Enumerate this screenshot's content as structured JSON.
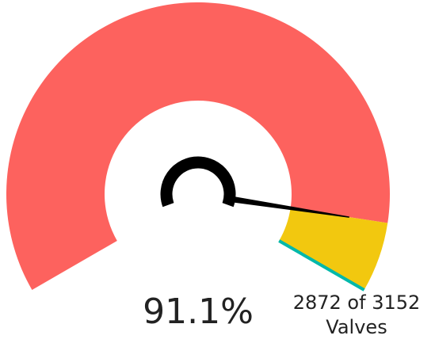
{
  "chart_data": {
    "type": "gauge",
    "value": 2872,
    "ylim": [
      0,
      3152
    ],
    "value_labels": [
      "91.1%"
    ],
    "caption": "2872 of 3152",
    "unit_label": "Valves",
    "fill_color": "#fd625e",
    "remainder_color": "#f2c80f",
    "target_color": "#01b8aa",
    "needle_color": "#000000"
  }
}
